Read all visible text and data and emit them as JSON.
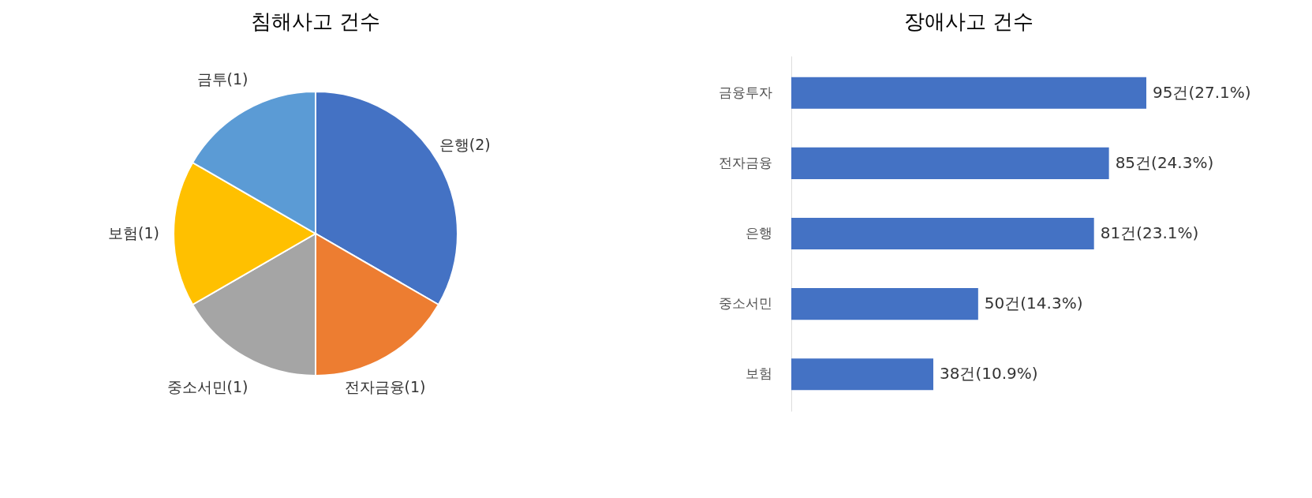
{
  "chart_data": [
    {
      "type": "pie",
      "title": "침해사고 건수",
      "categories": [
        "은행",
        "전자금융",
        "중소서민",
        "보험",
        "금투"
      ],
      "values": [
        2,
        1,
        1,
        1,
        1
      ],
      "value_labels": [
        "(2)",
        "(1)",
        "(1)",
        "(1)",
        "(1)"
      ],
      "colors": [
        "#4472c4",
        "#ed7d31",
        "#a5a5a5",
        "#ffc000",
        "#5b9bd5"
      ],
      "legend": false
    },
    {
      "type": "bar",
      "orientation": "horizontal",
      "title": "장애사고 건수",
      "categories": [
        "금융투자",
        "전자금융",
        "은행",
        "중소서민",
        "보험"
      ],
      "values": [
        95,
        85,
        81,
        50,
        38
      ],
      "value_labels": [
        "95건(27.1%)",
        "85건(24.3%)",
        "81건(23.1%)",
        "50건(14.3%)",
        "38건(10.9%)"
      ],
      "color": "#4472c4"
    }
  ]
}
